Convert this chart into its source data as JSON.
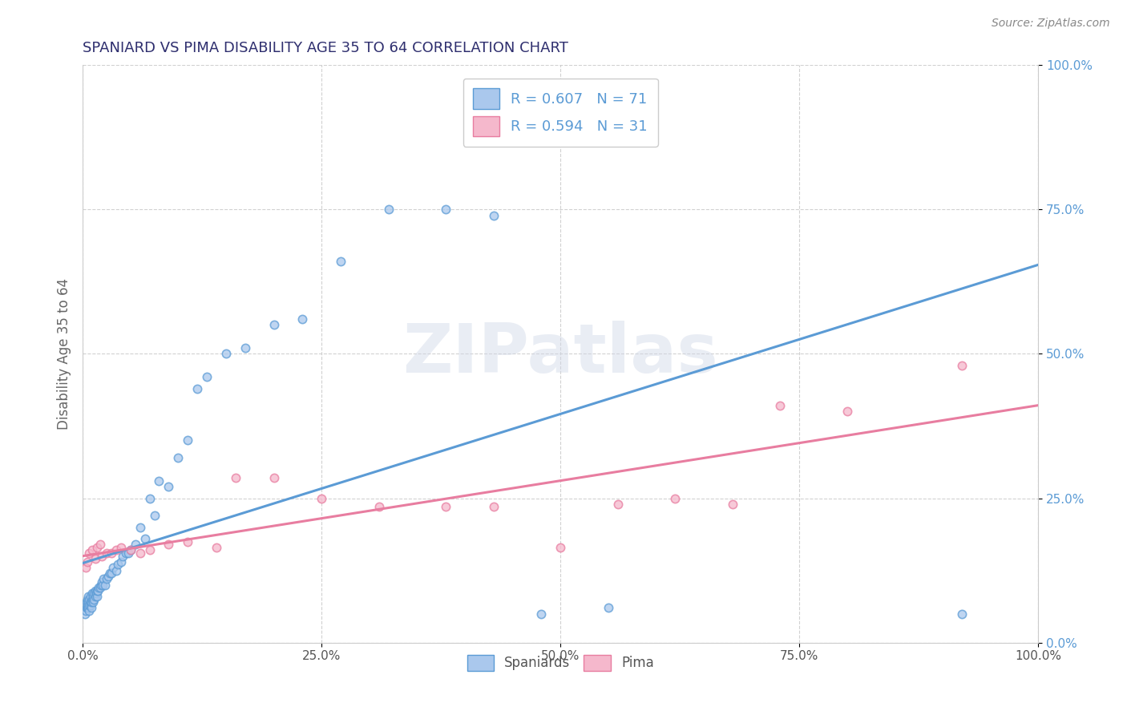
{
  "title": "SPANIARD VS PIMA DISABILITY AGE 35 TO 64 CORRELATION CHART",
  "source_text": "Source: ZipAtlas.com",
  "ylabel": "Disability Age 35 to 64",
  "r_spaniard": 0.607,
  "n_spaniard": 71,
  "r_pima": 0.594,
  "n_pima": 31,
  "spaniard_color": "#aac8ed",
  "pima_color": "#f5b8cc",
  "spaniard_line_color": "#5b9bd5",
  "pima_line_color": "#e87da0",
  "title_color": "#2e2e6e",
  "xlim": [
    0.0,
    1.0
  ],
  "ylim": [
    0.0,
    1.0
  ],
  "x_ticks": [
    0.0,
    0.25,
    0.5,
    0.75,
    1.0
  ],
  "x_tick_labels": [
    "0.0%",
    "25.0%",
    "50.0%",
    "75.0%",
    "100.0%"
  ],
  "y_ticks": [
    0.0,
    0.25,
    0.5,
    0.75,
    1.0
  ],
  "y_tick_labels": [
    "0.0%",
    "25.0%",
    "50.0%",
    "75.0%",
    "100.0%"
  ],
  "spaniard_x": [
    0.002,
    0.003,
    0.004,
    0.004,
    0.005,
    0.005,
    0.005,
    0.006,
    0.006,
    0.006,
    0.007,
    0.007,
    0.007,
    0.008,
    0.008,
    0.008,
    0.009,
    0.009,
    0.01,
    0.01,
    0.011,
    0.011,
    0.012,
    0.012,
    0.013,
    0.013,
    0.014,
    0.015,
    0.015,
    0.016,
    0.017,
    0.018,
    0.019,
    0.02,
    0.021,
    0.022,
    0.023,
    0.025,
    0.027,
    0.028,
    0.03,
    0.032,
    0.035,
    0.037,
    0.04,
    0.042,
    0.045,
    0.048,
    0.05,
    0.055,
    0.06,
    0.065,
    0.07,
    0.075,
    0.08,
    0.09,
    0.1,
    0.11,
    0.12,
    0.13,
    0.15,
    0.17,
    0.2,
    0.23,
    0.27,
    0.32,
    0.38,
    0.43,
    0.48,
    0.55,
    0.92
  ],
  "spaniard_y": [
    0.05,
    0.055,
    0.06,
    0.07,
    0.06,
    0.065,
    0.075,
    0.06,
    0.07,
    0.08,
    0.055,
    0.065,
    0.075,
    0.065,
    0.07,
    0.08,
    0.06,
    0.07,
    0.075,
    0.085,
    0.07,
    0.08,
    0.075,
    0.085,
    0.08,
    0.09,
    0.085,
    0.08,
    0.09,
    0.09,
    0.095,
    0.095,
    0.1,
    0.105,
    0.1,
    0.11,
    0.1,
    0.11,
    0.115,
    0.12,
    0.12,
    0.13,
    0.125,
    0.135,
    0.14,
    0.15,
    0.155,
    0.155,
    0.16,
    0.17,
    0.2,
    0.18,
    0.25,
    0.22,
    0.28,
    0.27,
    0.32,
    0.35,
    0.44,
    0.46,
    0.5,
    0.51,
    0.55,
    0.56,
    0.66,
    0.75,
    0.75,
    0.74,
    0.05,
    0.06,
    0.05
  ],
  "pima_x": [
    0.003,
    0.005,
    0.007,
    0.01,
    0.013,
    0.015,
    0.018,
    0.02,
    0.025,
    0.03,
    0.035,
    0.04,
    0.05,
    0.06,
    0.07,
    0.09,
    0.11,
    0.14,
    0.16,
    0.2,
    0.25,
    0.31,
    0.38,
    0.43,
    0.5,
    0.56,
    0.62,
    0.68,
    0.73,
    0.8,
    0.92
  ],
  "pima_y": [
    0.13,
    0.14,
    0.155,
    0.16,
    0.145,
    0.165,
    0.17,
    0.15,
    0.155,
    0.155,
    0.16,
    0.165,
    0.16,
    0.155,
    0.16,
    0.17,
    0.175,
    0.165,
    0.285,
    0.285,
    0.25,
    0.235,
    0.235,
    0.235,
    0.165,
    0.24,
    0.25,
    0.24,
    0.41,
    0.4,
    0.48
  ],
  "legend_label_spaniard": "Spaniards",
  "legend_label_pima": "Pima",
  "background_color": "#ffffff",
  "grid_color": "#cccccc",
  "watermark_text": "ZIPatlas"
}
